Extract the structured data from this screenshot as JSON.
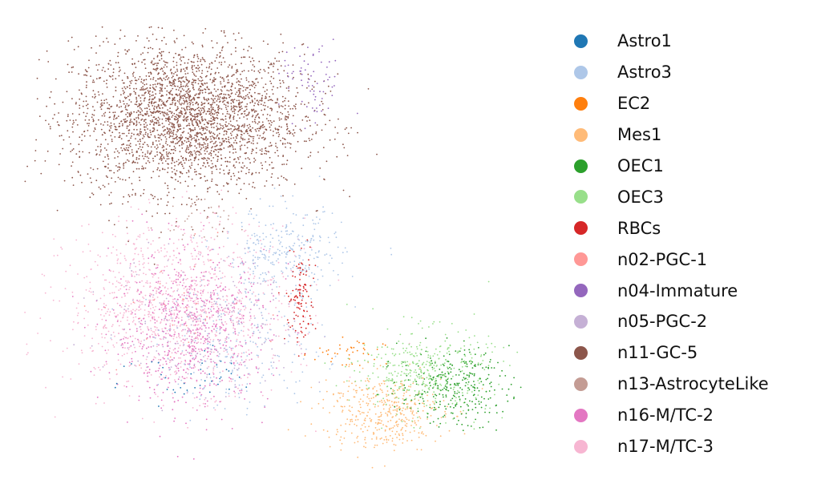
{
  "chart_data": {
    "type": "scatter",
    "title": "",
    "xlabel": "",
    "ylabel": "",
    "axes_visible": false,
    "grid": false,
    "legend_position": "right",
    "series": [
      {
        "name": "Astro1",
        "color": "#1f77b4",
        "approx_points": 40,
        "clusters": [
          {
            "cx": 4.2,
            "cy": 3.8,
            "sx": 1.2,
            "sy": 0.4,
            "n": 40
          }
        ]
      },
      {
        "name": "Astro3",
        "color": "#aec7e8",
        "approx_points": 520,
        "clusters": [
          {
            "cx": 6.8,
            "cy": 6.8,
            "sx": 1.0,
            "sy": 0.7,
            "n": 300
          },
          {
            "cx": 5.6,
            "cy": 4.6,
            "sx": 1.4,
            "sy": 0.9,
            "n": 220
          }
        ]
      },
      {
        "name": "EC2",
        "color": "#ff7f0e",
        "approx_points": 40,
        "clusters": [
          {
            "cx": 8.6,
            "cy": 4.4,
            "sx": 0.6,
            "sy": 0.25,
            "n": 40
          }
        ]
      },
      {
        "name": "Mes1",
        "color": "#ffbb78",
        "approx_points": 420,
        "clusters": [
          {
            "cx": 9.6,
            "cy": 3.0,
            "sx": 1.0,
            "sy": 0.55,
            "n": 420
          }
        ]
      },
      {
        "name": "OEC1",
        "color": "#2ca02c",
        "approx_points": 300,
        "clusters": [
          {
            "cx": 11.6,
            "cy": 3.6,
            "sx": 0.9,
            "sy": 0.55,
            "n": 300
          }
        ]
      },
      {
        "name": "OEC3",
        "color": "#98df8a",
        "approx_points": 380,
        "clusters": [
          {
            "cx": 10.8,
            "cy": 4.0,
            "sx": 1.1,
            "sy": 0.6,
            "n": 380
          }
        ]
      },
      {
        "name": "RBCs",
        "color": "#d62728",
        "approx_points": 110,
        "clusters": [
          {
            "cx": 7.3,
            "cy": 5.8,
            "sx": 0.25,
            "sy": 0.7,
            "n": 110
          }
        ]
      },
      {
        "name": "n02-PGC-1",
        "color": "#ff9896",
        "approx_points": 30,
        "clusters": [
          {
            "cx": 3.6,
            "cy": 5.6,
            "sx": 1.2,
            "sy": 1.0,
            "n": 30
          }
        ]
      },
      {
        "name": "n04-Immature",
        "color": "#9467bd",
        "approx_points": 70,
        "clusters": [
          {
            "cx": 7.6,
            "cy": 11.0,
            "sx": 0.5,
            "sy": 0.6,
            "n": 70
          }
        ]
      },
      {
        "name": "n05-PGC-2",
        "color": "#c5b0d5",
        "approx_points": 200,
        "clusters": [
          {
            "cx": 4.6,
            "cy": 5.2,
            "sx": 1.6,
            "sy": 1.0,
            "n": 200
          }
        ]
      },
      {
        "name": "n11-GC-5",
        "color": "#8c564b",
        "approx_points": 2900,
        "clusters": [
          {
            "cx": 4.1,
            "cy": 10.2,
            "sx": 1.9,
            "sy": 1.05,
            "n": 2900
          }
        ]
      },
      {
        "name": "n13-AstrocyteLike",
        "color": "#c49c94",
        "approx_points": 30,
        "clusters": [
          {
            "cx": 4.3,
            "cy": 7.6,
            "sx": 0.6,
            "sy": 0.4,
            "n": 30
          }
        ]
      },
      {
        "name": "n16-M/TC-2",
        "color": "#e377c2",
        "approx_points": 650,
        "clusters": [
          {
            "cx": 4.2,
            "cy": 5.0,
            "sx": 1.3,
            "sy": 1.1,
            "n": 650
          }
        ]
      },
      {
        "name": "n17-M/TC-3",
        "color": "#f7b6d2",
        "approx_points": 1100,
        "clusters": [
          {
            "cx": 3.8,
            "cy": 5.6,
            "sx": 1.8,
            "sy": 1.2,
            "n": 1100
          }
        ]
      }
    ],
    "xlim": [
      -0.5,
      13.5
    ],
    "ylim": [
      1.5,
      12.5
    ]
  }
}
